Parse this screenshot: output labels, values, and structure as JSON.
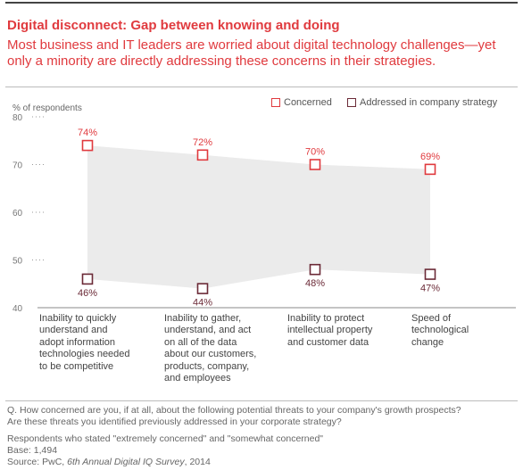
{
  "header": {
    "title": "Digital disconnect: Gap between knowing and doing",
    "subtitle": "Most business and IT leaders are worried about digital technology challenges—yet only a minority are directly addressing these concerns in their strategies."
  },
  "colors": {
    "concerned": "#e03a3e",
    "addressed": "#6b2a37",
    "band": "#ebebeb",
    "title": "#e03a3e"
  },
  "chart_data": {
    "type": "line",
    "ylabel": "% of respondents",
    "ylim": [
      40,
      80
    ],
    "yticks": [
      "80",
      "70",
      "60",
      "50",
      "40"
    ],
    "categories": [
      "Inability to quickly\nunderstand and\nadopt information\ntechnologies needed\nto be competitive",
      "Inability to gather,\nunderstand, and act\non all of the data\nabout our customers,\nproducts, company,\nand employees",
      "Inability to protect\nintellectual property\nand customer data",
      "Speed of\ntechnological\nchange"
    ],
    "series": [
      {
        "name": "Concerned",
        "values": [
          74,
          72,
          70,
          69
        ],
        "labels": [
          "74%",
          "72%",
          "70%",
          "69%"
        ]
      },
      {
        "name": "Addressed in company strategy",
        "values": [
          46,
          44,
          48,
          47
        ],
        "labels": [
          "46%",
          "44%",
          "48%",
          "47%"
        ]
      }
    ],
    "legend": "top-right",
    "shaded_band_between_series": true
  },
  "footnotes": {
    "question1": "Q. How concerned are you, if at all, about the following potential threats to your company's growth prospects?",
    "question2": "Are these threats you identified previously addressed in your corporate strategy?",
    "respondents": "Respondents who stated \"extremely concerned\" and \"somewhat concerned\"",
    "base": "Base: 1,494",
    "source_prefix": "Source: PwC, ",
    "source_title": "6th Annual Digital IQ Survey",
    "source_suffix": ", 2014"
  }
}
